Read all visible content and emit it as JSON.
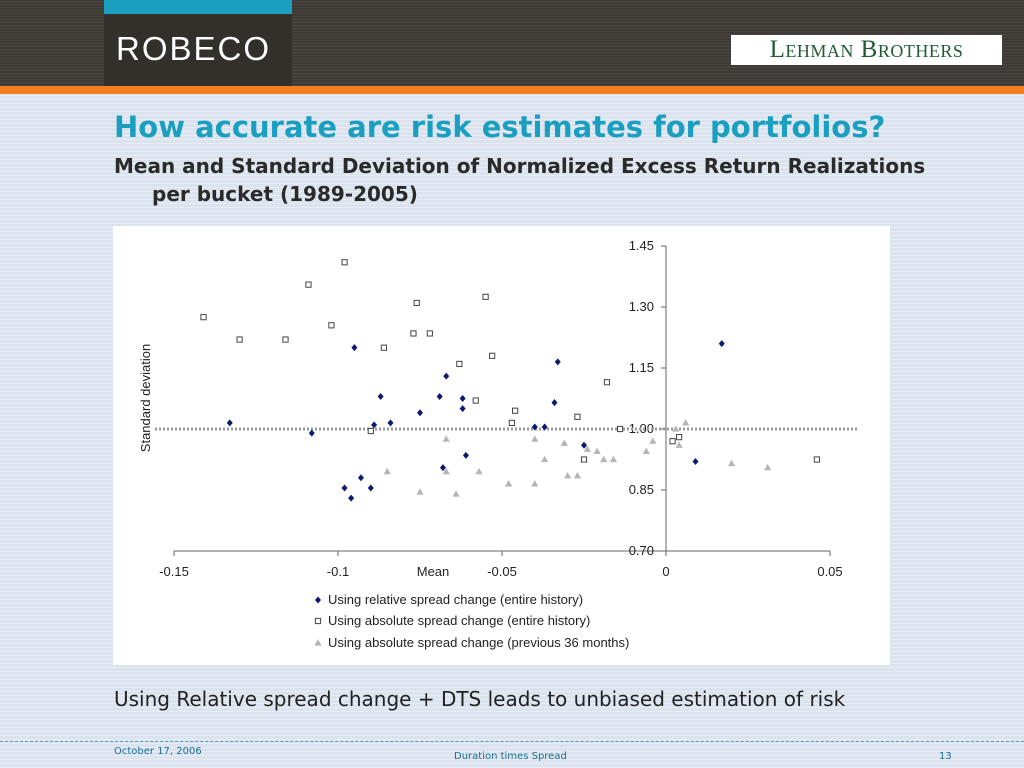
{
  "header": {
    "robeco_logo": "ROBECO",
    "lehman_logo": "Lehman Brothers"
  },
  "slide": {
    "title": "How accurate are risk estimates for portfolios?",
    "subtitle": "Mean and Standard Deviation of Normalized Excess Return Realizations per bucket (1989-2005)",
    "conclusion": "Using Relative spread change + DTS leads to unbiased estimation of risk"
  },
  "footer": {
    "date": "October 17, 2006",
    "title": "Duration times Spread",
    "page": "13"
  },
  "colors": {
    "relative": "#0a1a6e",
    "absolute_hist": "#444444",
    "absolute_36m": "#b5b5b5",
    "reference": "#9a9a9a"
  },
  "chart_data": {
    "type": "scatter",
    "xlabel": "Mean",
    "ylabel": "Standard deviation",
    "xlim": [
      -0.15,
      0.05
    ],
    "ylim": [
      0.7,
      1.45
    ],
    "xticks": [
      -0.15,
      -0.1,
      -0.05,
      0,
      0.05
    ],
    "xtick_labels": [
      "-0.15",
      "-0.1",
      "-0.05",
      "0",
      "0.05"
    ],
    "yticks": [
      0.7,
      0.85,
      1.0,
      1.15,
      1.3,
      1.45
    ],
    "ytick_labels": [
      "0.70",
      "0.85",
      "1.00",
      "1.15",
      "1.30",
      "1.45"
    ],
    "reference_line_y": 1.0,
    "legend_position": "bottom-left",
    "series": [
      {
        "name": "Using relative spread change (entire history)",
        "marker": "diamond",
        "points": [
          [
            -0.133,
            1.015
          ],
          [
            -0.108,
            0.99
          ],
          [
            -0.098,
            0.855
          ],
          [
            -0.096,
            0.83
          ],
          [
            -0.095,
            1.2
          ],
          [
            -0.093,
            0.88
          ],
          [
            -0.09,
            0.855
          ],
          [
            -0.089,
            1.01
          ],
          [
            -0.087,
            1.08
          ],
          [
            -0.084,
            1.015
          ],
          [
            -0.075,
            1.04
          ],
          [
            -0.069,
            1.08
          ],
          [
            -0.068,
            0.905
          ],
          [
            -0.067,
            1.13
          ],
          [
            -0.062,
            1.05
          ],
          [
            -0.062,
            1.075
          ],
          [
            -0.061,
            0.935
          ],
          [
            -0.04,
            1.005
          ],
          [
            -0.037,
            1.005
          ],
          [
            -0.034,
            1.065
          ],
          [
            -0.033,
            1.165
          ],
          [
            -0.025,
            0.96
          ],
          [
            0.009,
            0.92
          ],
          [
            0.017,
            1.21
          ]
        ]
      },
      {
        "name": "Using absolute spread change (entire history)",
        "marker": "square",
        "points": [
          [
            -0.141,
            1.275
          ],
          [
            -0.13,
            1.22
          ],
          [
            -0.116,
            1.22
          ],
          [
            -0.109,
            1.355
          ],
          [
            -0.102,
            1.255
          ],
          [
            -0.098,
            1.41
          ],
          [
            -0.09,
            0.995
          ],
          [
            -0.086,
            1.2
          ],
          [
            -0.076,
            1.31
          ],
          [
            -0.077,
            1.235
          ],
          [
            -0.072,
            1.235
          ],
          [
            -0.063,
            1.16
          ],
          [
            -0.058,
            1.07
          ],
          [
            -0.055,
            1.325
          ],
          [
            -0.053,
            1.18
          ],
          [
            -0.047,
            1.015
          ],
          [
            -0.046,
            1.045
          ],
          [
            -0.027,
            1.03
          ],
          [
            -0.025,
            0.925
          ],
          [
            -0.018,
            1.115
          ],
          [
            -0.014,
            1.0
          ],
          [
            0.002,
            0.97
          ],
          [
            0.004,
            0.98
          ],
          [
            0.046,
            0.925
          ]
        ]
      },
      {
        "name": "Using absolute spread change (previous 36 months)",
        "marker": "triangle",
        "points": [
          [
            -0.085,
            0.895
          ],
          [
            -0.075,
            0.845
          ],
          [
            -0.067,
            0.975
          ],
          [
            -0.067,
            0.895
          ],
          [
            -0.064,
            0.84
          ],
          [
            -0.057,
            0.895
          ],
          [
            -0.048,
            0.865
          ],
          [
            -0.04,
            0.975
          ],
          [
            -0.04,
            0.865
          ],
          [
            -0.037,
            0.925
          ],
          [
            -0.031,
            0.965
          ],
          [
            -0.03,
            0.885
          ],
          [
            -0.027,
            0.885
          ],
          [
            -0.024,
            0.95
          ],
          [
            -0.021,
            0.945
          ],
          [
            -0.019,
            0.925
          ],
          [
            -0.016,
            0.925
          ],
          [
            -0.006,
            0.945
          ],
          [
            -0.004,
            0.97
          ],
          [
            0.003,
            1.0
          ],
          [
            0.004,
            0.96
          ],
          [
            0.006,
            1.015
          ],
          [
            0.02,
            0.915
          ],
          [
            0.031,
            0.905
          ]
        ]
      }
    ]
  }
}
